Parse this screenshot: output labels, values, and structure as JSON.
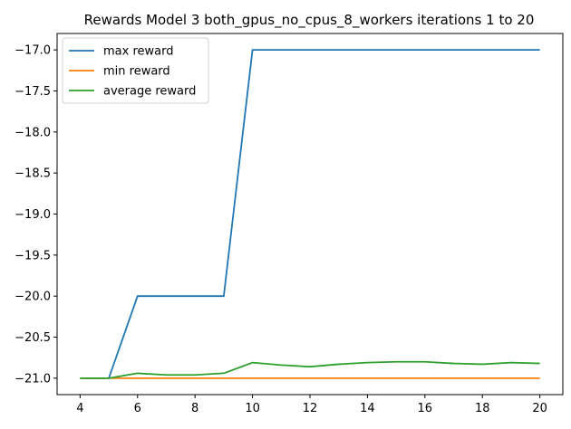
{
  "chart_data": {
    "type": "line",
    "title": "Rewards Model 3 both_gpus_no_cpus_8_workers iterations 1 to 20",
    "xlabel": "",
    "ylabel": "",
    "x": [
      4,
      5,
      6,
      7,
      8,
      9,
      10,
      11,
      12,
      13,
      14,
      15,
      16,
      17,
      18,
      19,
      20
    ],
    "xlim": [
      3.2,
      20.8
    ],
    "ylim": [
      -21.2,
      -16.8
    ],
    "xticks": [
      4,
      6,
      8,
      10,
      12,
      14,
      16,
      18,
      20
    ],
    "yticks": [
      -21.0,
      -20.5,
      -20.0,
      -19.5,
      -19.0,
      -18.5,
      -18.0,
      -17.5,
      -17.0
    ],
    "xtick_labels": [
      "4",
      "6",
      "8",
      "10",
      "12",
      "14",
      "16",
      "18",
      "20"
    ],
    "ytick_labels": [
      "−21.0",
      "−20.5",
      "−20.0",
      "−19.5",
      "−19.0",
      "−18.5",
      "−18.0",
      "−17.5",
      "−17.0"
    ],
    "grid": false,
    "legend_position": "top-left",
    "series": [
      {
        "name": "max reward",
        "color": "#1f77b4",
        "values": [
          -21.0,
          -21.0,
          -20.0,
          -20.0,
          -20.0,
          -20.0,
          -17.0,
          -17.0,
          -17.0,
          -17.0,
          -17.0,
          -17.0,
          -17.0,
          -17.0,
          -17.0,
          -17.0,
          -17.0
        ]
      },
      {
        "name": "min reward",
        "color": "#ff7f0e",
        "values": [
          -21.0,
          -21.0,
          -21.0,
          -21.0,
          -21.0,
          -21.0,
          -21.0,
          -21.0,
          -21.0,
          -21.0,
          -21.0,
          -21.0,
          -21.0,
          -21.0,
          -21.0,
          -21.0,
          -21.0
        ]
      },
      {
        "name": "average reward",
        "color": "#2ca02c",
        "values": [
          -21.0,
          -21.0,
          -20.94,
          -20.96,
          -20.96,
          -20.94,
          -20.81,
          -20.84,
          -20.86,
          -20.83,
          -20.81,
          -20.8,
          -20.8,
          -20.82,
          -20.83,
          -20.81,
          -20.82
        ]
      }
    ]
  }
}
